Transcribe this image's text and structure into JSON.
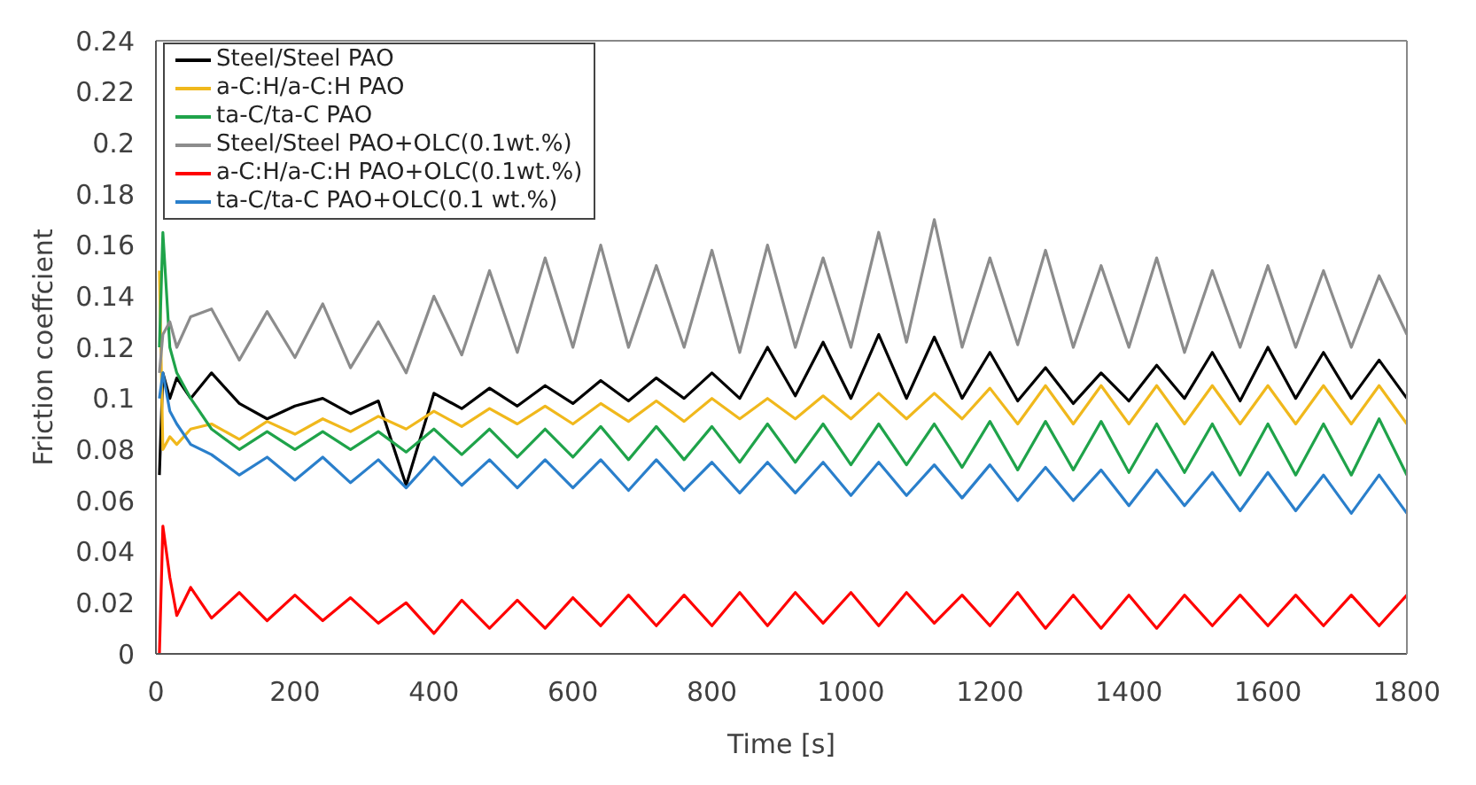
{
  "chart_data": {
    "type": "line",
    "xlabel": "Time [s]",
    "ylabel": "Friction coeffcient",
    "legend": "top left",
    "grid": false,
    "xlim": [
      0,
      1800
    ],
    "xticks": [
      0,
      200,
      400,
      600,
      800,
      1000,
      1200,
      1400,
      1600,
      1800
    ],
    "ylim": [
      0,
      0.24
    ],
    "yticks": [
      0,
      0.02,
      0.04,
      0.06,
      0.08,
      0.1,
      0.12,
      0.14,
      0.16,
      0.18,
      0.2,
      0.22,
      0.24
    ],
    "x": [
      5,
      10,
      20,
      30,
      50,
      80,
      120,
      160,
      200,
      240,
      280,
      320,
      360,
      400,
      440,
      480,
      520,
      560,
      600,
      640,
      680,
      720,
      760,
      800,
      840,
      880,
      920,
      960,
      1000,
      1040,
      1080,
      1120,
      1160,
      1200,
      1240,
      1280,
      1320,
      1360,
      1400,
      1440,
      1480,
      1520,
      1560,
      1600,
      1640,
      1680,
      1720,
      1760,
      1800
    ],
    "series": [
      {
        "name": "Steel/Steel PAO",
        "color": "#000000",
        "values": [
          0.07,
          0.11,
          0.1,
          0.108,
          0.1,
          0.11,
          0.098,
          0.092,
          0.097,
          0.1,
          0.094,
          0.099,
          0.066,
          0.102,
          0.096,
          0.104,
          0.097,
          0.105,
          0.098,
          0.107,
          0.099,
          0.108,
          0.1,
          0.11,
          0.1,
          0.12,
          0.101,
          0.122,
          0.1,
          0.125,
          0.1,
          0.124,
          0.1,
          0.118,
          0.099,
          0.112,
          0.098,
          0.11,
          0.099,
          0.113,
          0.1,
          0.118,
          0.099,
          0.12,
          0.1,
          0.118,
          0.1,
          0.115,
          0.1
        ]
      },
      {
        "name": "a-C:H/a-C:H PAO",
        "color": "#f0b81c",
        "values": [
          0.15,
          0.08,
          0.085,
          0.082,
          0.088,
          0.09,
          0.084,
          0.091,
          0.086,
          0.092,
          0.087,
          0.093,
          0.088,
          0.095,
          0.089,
          0.096,
          0.09,
          0.097,
          0.09,
          0.098,
          0.091,
          0.099,
          0.091,
          0.1,
          0.092,
          0.1,
          0.092,
          0.101,
          0.092,
          0.102,
          0.092,
          0.102,
          0.092,
          0.104,
          0.09,
          0.105,
          0.09,
          0.105,
          0.09,
          0.105,
          0.09,
          0.105,
          0.09,
          0.105,
          0.09,
          0.105,
          0.09,
          0.105,
          0.09
        ]
      },
      {
        "name": "ta-C/ta-C PAO",
        "color": "#1fa34a",
        "values": [
          0.12,
          0.165,
          0.12,
          0.11,
          0.1,
          0.088,
          0.08,
          0.087,
          0.08,
          0.087,
          0.08,
          0.087,
          0.079,
          0.088,
          0.078,
          0.088,
          0.077,
          0.088,
          0.077,
          0.089,
          0.076,
          0.089,
          0.076,
          0.089,
          0.075,
          0.09,
          0.075,
          0.09,
          0.074,
          0.09,
          0.074,
          0.09,
          0.073,
          0.091,
          0.072,
          0.091,
          0.072,
          0.091,
          0.071,
          0.09,
          0.071,
          0.09,
          0.07,
          0.09,
          0.07,
          0.09,
          0.07,
          0.092,
          0.07
        ]
      },
      {
        "name": "Steel/Steel PAO+OLC(0.1wt.%)",
        "color": "#8c8c8c",
        "values": [
          0.11,
          0.125,
          0.13,
          0.12,
          0.132,
          0.135,
          0.115,
          0.134,
          0.116,
          0.137,
          0.112,
          0.13,
          0.11,
          0.14,
          0.117,
          0.15,
          0.118,
          0.155,
          0.12,
          0.16,
          0.12,
          0.152,
          0.12,
          0.158,
          0.118,
          0.16,
          0.12,
          0.155,
          0.12,
          0.165,
          0.122,
          0.17,
          0.12,
          0.155,
          0.121,
          0.158,
          0.12,
          0.152,
          0.12,
          0.155,
          0.118,
          0.15,
          0.12,
          0.152,
          0.12,
          0.15,
          0.12,
          0.148,
          0.125
        ]
      },
      {
        "name": "a-C:H/a-C:H PAO+OLC(0.1wt.%)",
        "color": "#ff0000",
        "values": [
          0,
          0.05,
          0.03,
          0.015,
          0.026,
          0.014,
          0.024,
          0.013,
          0.023,
          0.013,
          0.022,
          0.012,
          0.02,
          0.008,
          0.021,
          0.01,
          0.021,
          0.01,
          0.022,
          0.011,
          0.023,
          0.011,
          0.023,
          0.011,
          0.024,
          0.011,
          0.024,
          0.012,
          0.024,
          0.011,
          0.024,
          0.012,
          0.023,
          0.011,
          0.024,
          0.01,
          0.023,
          0.01,
          0.023,
          0.01,
          0.023,
          0.011,
          0.023,
          0.011,
          0.023,
          0.011,
          0.023,
          0.011,
          0.023
        ]
      },
      {
        "name": "ta-C/ta-C PAO+OLC(0.1 wt.%)",
        "color": "#2a7fcb",
        "values": [
          0.1,
          0.11,
          0.095,
          0.09,
          0.082,
          0.078,
          0.07,
          0.077,
          0.068,
          0.077,
          0.067,
          0.076,
          0.065,
          0.077,
          0.066,
          0.076,
          0.065,
          0.076,
          0.065,
          0.076,
          0.064,
          0.076,
          0.064,
          0.075,
          0.063,
          0.075,
          0.063,
          0.075,
          0.062,
          0.075,
          0.062,
          0.074,
          0.061,
          0.074,
          0.06,
          0.073,
          0.06,
          0.072,
          0.058,
          0.072,
          0.058,
          0.071,
          0.056,
          0.071,
          0.056,
          0.07,
          0.055,
          0.07,
          0.055
        ]
      }
    ]
  }
}
